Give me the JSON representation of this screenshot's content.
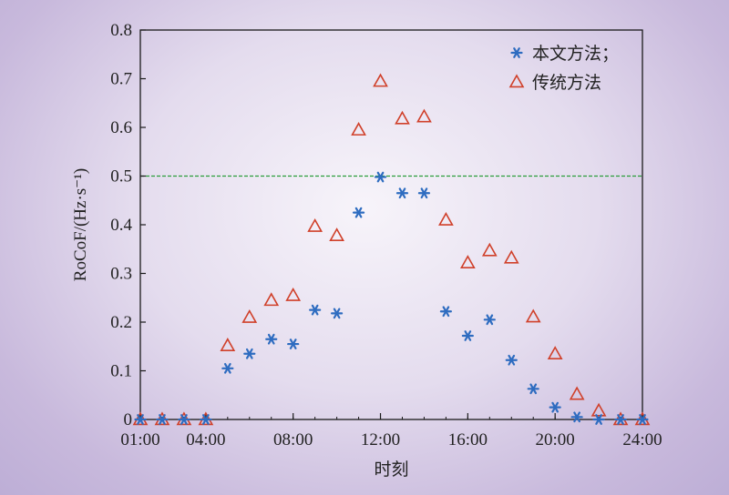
{
  "chart_data": {
    "type": "scatter",
    "xlabel": "时刻",
    "ylabel": "RoCoF/(Hz·s⁻¹)",
    "ylim": [
      0,
      0.8
    ],
    "yticks": [
      "0",
      "0.1",
      "0.2",
      "0.3",
      "0.4",
      "0.5",
      "0.6",
      "0.7",
      "0.8"
    ],
    "xlim": [
      1,
      24
    ],
    "xticks": [
      {
        "value": 1,
        "label": "01:00"
      },
      {
        "value": 4,
        "label": "04:00"
      },
      {
        "value": 8,
        "label": "08:00"
      },
      {
        "value": 12,
        "label": "12:00"
      },
      {
        "value": 16,
        "label": "16:00"
      },
      {
        "value": 20,
        "label": "20:00"
      },
      {
        "value": 24,
        "label": "24:00"
      }
    ],
    "threshold": {
      "y": 0.5,
      "color": "#2a9d3a",
      "style": "dashed"
    },
    "legend_position": "top-right",
    "series": [
      {
        "name": "本文方法；",
        "marker": "asterisk",
        "color": "#2e6cc0",
        "x": [
          1,
          2,
          3,
          4,
          5,
          6,
          7,
          8,
          9,
          10,
          11,
          12,
          13,
          14,
          15,
          16,
          17,
          18,
          19,
          20,
          21,
          22,
          23,
          24
        ],
        "y": [
          0,
          0,
          0,
          0,
          0.105,
          0.135,
          0.165,
          0.155,
          0.225,
          0.218,
          0.425,
          0.498,
          0.465,
          0.465,
          0.222,
          0.172,
          0.205,
          0.122,
          0.063,
          0.025,
          0.005,
          0,
          0,
          0
        ]
      },
      {
        "name": "传统方法",
        "marker": "triangle-open",
        "color": "#d0402a",
        "x": [
          1,
          2,
          3,
          4,
          5,
          6,
          7,
          8,
          9,
          10,
          11,
          12,
          13,
          14,
          15,
          16,
          17,
          18,
          19,
          20,
          21,
          22,
          23,
          24
        ],
        "y": [
          0,
          0,
          0,
          0,
          0.152,
          0.21,
          0.245,
          0.255,
          0.397,
          0.378,
          0.595,
          0.695,
          0.618,
          0.622,
          0.41,
          0.322,
          0.347,
          0.332,
          0.211,
          0.135,
          0.052,
          0.018,
          0,
          0
        ]
      }
    ]
  }
}
